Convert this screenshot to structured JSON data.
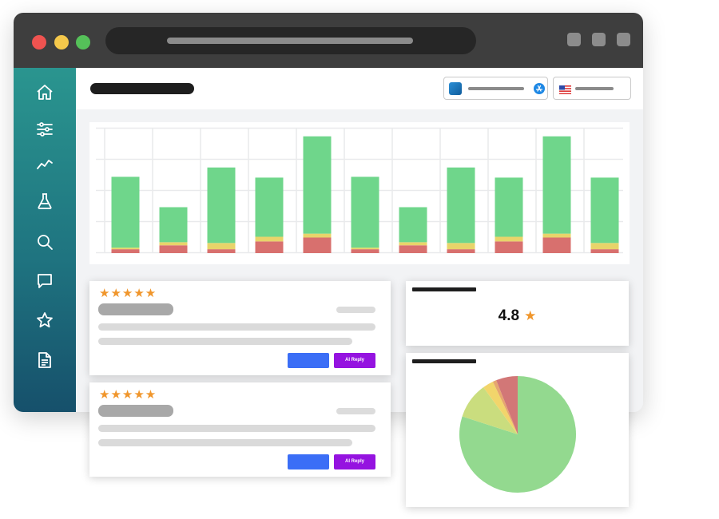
{
  "colors": {
    "titlebar": "#3e3e3e",
    "sidebar_top": "#2a958f",
    "sidebar_bottom": "#16506b",
    "bar_green": "#6fd68b",
    "bar_yellow": "#e8d46a",
    "bar_red": "#d8706e",
    "star": "#f0962c",
    "button_blue": "#3b6ef6",
    "button_ai": "#9513e0"
  },
  "sidebar": {
    "items": [
      {
        "icon": "home-icon"
      },
      {
        "icon": "sliders-icon"
      },
      {
        "icon": "trend-icon"
      },
      {
        "icon": "flask-icon"
      },
      {
        "icon": "search-icon"
      },
      {
        "icon": "chat-icon"
      },
      {
        "icon": "star-icon"
      },
      {
        "icon": "document-icon"
      }
    ]
  },
  "header": {
    "app_selector_icon": "app-icon",
    "store_icon": "appstore-icon",
    "country_icon": "us-flag-icon"
  },
  "chart_data": {
    "type": "bar",
    "stacked": true,
    "categories": [
      "",
      "",
      "",
      "",
      "",
      "",
      "",
      "",
      "",
      "",
      ""
    ],
    "series": [
      {
        "values": [
          5,
          10,
          5,
          15,
          20,
          5,
          10,
          5,
          15,
          20,
          5
        ]
      },
      {
        "values": [
          2,
          4,
          8,
          6,
          5,
          2,
          4,
          8,
          6,
          5,
          8
        ]
      },
      {
        "values": [
          91,
          45,
          97,
          76,
          125,
          91,
          45,
          97,
          76,
          125,
          84
        ]
      }
    ],
    "ylim": [
      0,
      160
    ],
    "grid": true
  },
  "reviews": [
    {
      "stars": "★★★★★",
      "ai_reply_label": "AI Reply"
    },
    {
      "stars": "★★★★★",
      "ai_reply_label": "AI Reply"
    }
  ],
  "rating": {
    "value": "4.8",
    "star": "★"
  },
  "pie": {
    "type": "pie",
    "values": [
      80,
      10,
      3,
      1,
      6
    ]
  }
}
